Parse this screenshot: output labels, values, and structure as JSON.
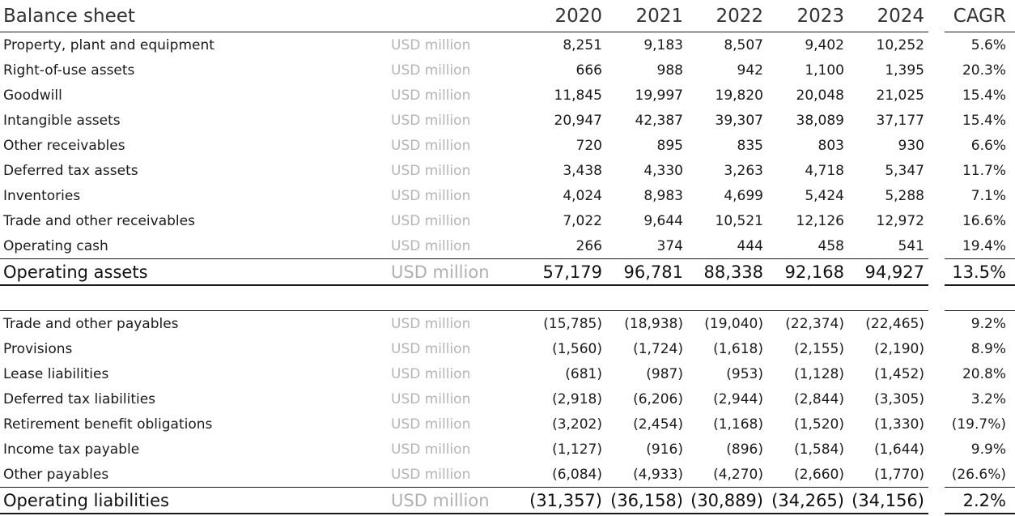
{
  "title": "Balance sheet",
  "years": [
    "2020",
    "2021",
    "2022",
    "2023",
    "2024"
  ],
  "cagr_label": "CAGR",
  "assets": [
    {
      "label": "Property, plant and equipment",
      "unit": "USD million",
      "values": [
        "8,251",
        "9,183",
        "8,507",
        "9,402",
        "10,252"
      ],
      "cagr": "5.6%"
    },
    {
      "label": "Right-of-use assets",
      "unit": "USD million",
      "values": [
        "666",
        "988",
        "942",
        "1,100",
        "1,395"
      ],
      "cagr": "20.3%"
    },
    {
      "label": "Goodwill",
      "unit": "USD million",
      "values": [
        "11,845",
        "19,997",
        "19,820",
        "20,048",
        "21,025"
      ],
      "cagr": "15.4%"
    },
    {
      "label": "Intangible assets",
      "unit": "USD million",
      "values": [
        "20,947",
        "42,387",
        "39,307",
        "38,089",
        "37,177"
      ],
      "cagr": "15.4%"
    },
    {
      "label": "Other receivables",
      "unit": "USD million",
      "values": [
        "720",
        "895",
        "835",
        "803",
        "930"
      ],
      "cagr": "6.6%"
    },
    {
      "label": "Deferred tax assets",
      "unit": "USD million",
      "values": [
        "3,438",
        "4,330",
        "3,263",
        "4,718",
        "5,347"
      ],
      "cagr": "11.7%"
    },
    {
      "label": "Inventories",
      "unit": "USD million",
      "values": [
        "4,024",
        "8,983",
        "4,699",
        "5,424",
        "5,288"
      ],
      "cagr": "7.1%"
    },
    {
      "label": "Trade and other receivables",
      "unit": "USD million",
      "values": [
        "7,022",
        "9,644",
        "10,521",
        "12,126",
        "12,972"
      ],
      "cagr": "16.6%"
    },
    {
      "label": "Operating cash",
      "unit": "USD million",
      "values": [
        "266",
        "374",
        "444",
        "458",
        "541"
      ],
      "cagr": "19.4%"
    }
  ],
  "assets_total": {
    "label": "Operating assets",
    "unit": "USD million",
    "values": [
      "57,179",
      "96,781",
      "88,338",
      "92,168",
      "94,927"
    ],
    "cagr": "13.5%"
  },
  "liabilities": [
    {
      "label": "Trade and other payables",
      "unit": "USD million",
      "values": [
        "(15,785)",
        "(18,938)",
        "(19,040)",
        "(22,374)",
        "(22,465)"
      ],
      "cagr": "9.2%"
    },
    {
      "label": "Provisions",
      "unit": "USD million",
      "values": [
        "(1,560)",
        "(1,724)",
        "(1,618)",
        "(2,155)",
        "(2,190)"
      ],
      "cagr": "8.9%"
    },
    {
      "label": "Lease liabilities",
      "unit": "USD million",
      "values": [
        "(681)",
        "(987)",
        "(953)",
        "(1,128)",
        "(1,452)"
      ],
      "cagr": "20.8%"
    },
    {
      "label": "Deferred tax liabilities",
      "unit": "USD million",
      "values": [
        "(2,918)",
        "(6,206)",
        "(2,944)",
        "(2,844)",
        "(3,305)"
      ],
      "cagr": "3.2%"
    },
    {
      "label": "Retirement benefit obligations",
      "unit": "USD million",
      "values": [
        "(3,202)",
        "(2,454)",
        "(1,168)",
        "(1,520)",
        "(1,330)"
      ],
      "cagr": "(19.7%)"
    },
    {
      "label": "Income tax payable",
      "unit": "USD million",
      "values": [
        "(1,127)",
        "(916)",
        "(896)",
        "(1,584)",
        "(1,644)"
      ],
      "cagr": "9.9%"
    },
    {
      "label": "Other payables",
      "unit": "USD million",
      "values": [
        "(6,084)",
        "(4,933)",
        "(4,270)",
        "(2,660)",
        "(1,770)"
      ],
      "cagr": "(26.6%)"
    }
  ],
  "liabilities_total": {
    "label": "Operating liabilities",
    "unit": "USD million",
    "values": [
      "(31,357)",
      "(36,158)",
      "(30,889)",
      "(34,265)",
      "(34,156)"
    ],
    "cagr": "2.2%"
  }
}
